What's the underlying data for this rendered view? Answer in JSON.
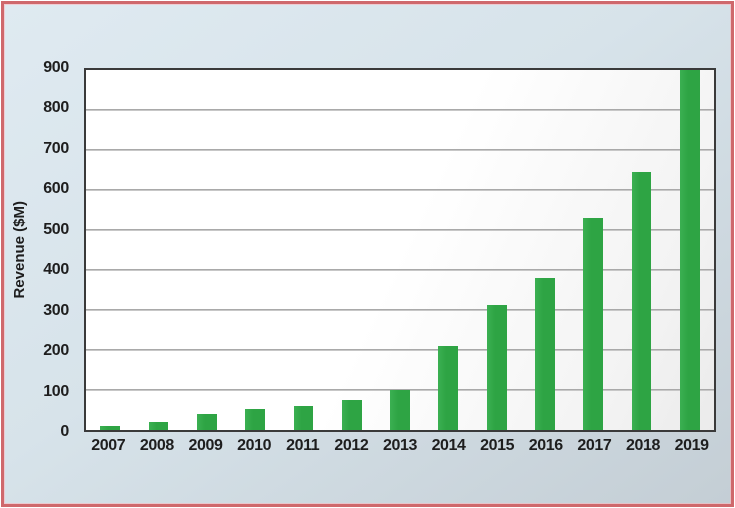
{
  "window": {
    "background_top_left": "#dfeaf1",
    "background_bottom_right": "#c4ced5",
    "frame_border_color": "#cf686c"
  },
  "chart_data": {
    "type": "bar",
    "title": "",
    "xlabel": "",
    "ylabel": "Revenue ($M)",
    "categories": [
      "2007",
      "2008",
      "2009",
      "2010",
      "2011",
      "2012",
      "2013",
      "2014",
      "2015",
      "2016",
      "2017",
      "2018",
      "2019"
    ],
    "values": [
      10,
      20,
      40,
      52,
      60,
      75,
      100,
      210,
      312,
      380,
      530,
      645,
      900
    ],
    "ylim": [
      0,
      900
    ],
    "yticks": [
      0,
      100,
      200,
      300,
      400,
      500,
      600,
      700,
      800,
      900
    ],
    "grid": "horizontal",
    "legend_position": "none",
    "bar_color": "#2ea444",
    "plot_border_color": "#3a3a3a",
    "gridline_color": "#9a9a9a",
    "text_color": "#1e1e1e"
  }
}
